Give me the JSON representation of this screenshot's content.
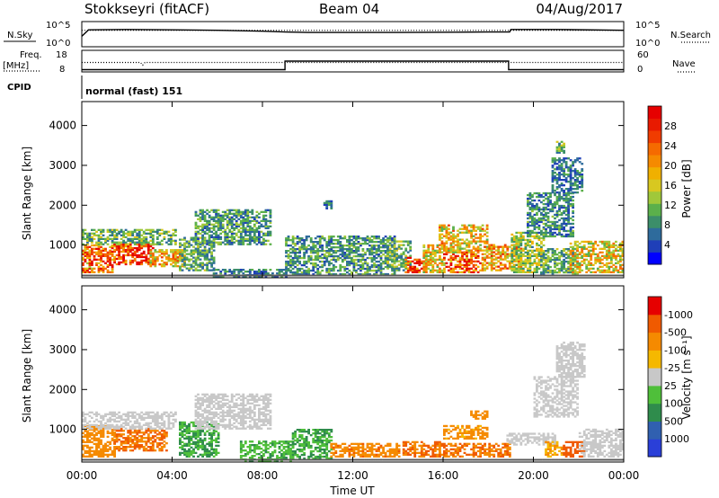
{
  "header": {
    "station": "Stokkseyri (fitACF)",
    "beam": "Beam 04",
    "date": "04/Aug/2017"
  },
  "nsky_panel": {
    "left_label": "N.Sky",
    "left_ticks": [
      "10^5",
      "10^0"
    ],
    "right_label": "N.Search",
    "right_ticks": [
      "10^5",
      "10^0"
    ]
  },
  "freq_panel": {
    "left_label_1": "Freq.",
    "left_label_2": "[MHz]",
    "left_ticks": [
      "18",
      "8"
    ],
    "right_label": "Nave",
    "right_ticks": [
      "60",
      "0"
    ],
    "cpid_label": "CPID",
    "cpid_value": "normal (fast) 151"
  },
  "chart_data": [
    {
      "type": "line",
      "panel": "N.Sky / N.Search",
      "log_scale": true,
      "x_range_hours": [
        0,
        24
      ],
      "series": [
        {
          "name": "N.Sky",
          "style": "solid",
          "x": [
            0.0,
            0.3,
            2.0,
            4.0,
            6.0,
            8.0,
            9.0,
            10.0,
            14.0,
            18.0,
            18.95,
            19.0,
            21.0,
            24.0
          ],
          "log_values": [
            2.2,
            3.7,
            3.8,
            3.7,
            3.6,
            3.4,
            3.2,
            3.1,
            3.1,
            3.2,
            3.2,
            3.8,
            3.8,
            3.6
          ]
        },
        {
          "name": "N.Search",
          "style": "dotted",
          "x": [
            0.0,
            24.0
          ],
          "log_values": [
            3.6,
            3.6
          ]
        }
      ]
    },
    {
      "type": "line",
      "panel": "Freq. / Nave",
      "series": [
        {
          "name": "Freq. [MHz]",
          "style": "dotted",
          "x": [
            0.0,
            2.6,
            2.7,
            2.8,
            24.0
          ],
          "values": [
            12.3,
            12.3,
            11.0,
            12.3,
            12.3
          ]
        },
        {
          "name": "Nave",
          "style": "solid",
          "x": [
            0.0,
            9.0,
            9.0,
            18.9,
            18.9,
            24.0
          ],
          "values": [
            4,
            4,
            30,
            30,
            4,
            4
          ]
        }
      ],
      "left_ylim": [
        8,
        18
      ],
      "right_ylim": [
        0,
        60
      ]
    },
    {
      "type": "heatmap",
      "panel": "Power",
      "ylabel": "Slant Range [km]",
      "xlim_hours": [
        0,
        24
      ],
      "ylim": [
        180,
        4600
      ],
      "y_ticks": [
        1000,
        2000,
        3000,
        4000
      ],
      "colorbar": {
        "label": "Power [dB]",
        "ticks": [
          "4",
          "8",
          "12",
          "16",
          "20",
          "24",
          "28"
        ],
        "colors": [
          "#0000ff",
          "#1f3fb8",
          "#2e6b9c",
          "#3c8e6a",
          "#5bb04b",
          "#a0c83a",
          "#d8c820",
          "#f0b000",
          "#f58a00",
          "#f56a00",
          "#f03c00",
          "#e81a00",
          "#e60000"
        ]
      },
      "regions": [
        {
          "t": [
            0.0,
            1.4
          ],
          "r": [
            300,
            1000
          ],
          "v": 22
        },
        {
          "t": [
            1.3,
            3.2
          ],
          "r": [
            500,
            1000
          ],
          "v": 26
        },
        {
          "t": [
            3.0,
            4.5
          ],
          "r": [
            450,
            900
          ],
          "v": 18
        },
        {
          "t": [
            0.0,
            4.2
          ],
          "r": [
            1000,
            1400
          ],
          "v": 10
        },
        {
          "t": [
            4.3,
            5.8
          ],
          "r": [
            350,
            1200
          ],
          "v": 9
        },
        {
          "t": [
            5.0,
            8.3
          ],
          "r": [
            1000,
            1900
          ],
          "v": 8
        },
        {
          "t": [
            5.8,
            9.0
          ],
          "r": [
            180,
            400
          ],
          "v": 6
        },
        {
          "t": [
            9.0,
            13.8
          ],
          "r": [
            250,
            1200
          ],
          "v": 8
        },
        {
          "t": [
            10.7,
            11.0
          ],
          "r": [
            1900,
            2100
          ],
          "v": 6
        },
        {
          "t": [
            13.5,
            14.5
          ],
          "r": [
            350,
            1100
          ],
          "v": 10
        },
        {
          "t": [
            14.3,
            15.2
          ],
          "r": [
            300,
            700
          ],
          "v": 27
        },
        {
          "t": [
            15.1,
            16.0
          ],
          "r": [
            300,
            1000
          ],
          "v": 16
        },
        {
          "t": [
            16.0,
            17.8
          ],
          "r": [
            300,
            800
          ],
          "v": 24
        },
        {
          "t": [
            15.8,
            18.0
          ],
          "r": [
            800,
            1500
          ],
          "v": 17
        },
        {
          "t": [
            17.8,
            19.5
          ],
          "r": [
            350,
            1000
          ],
          "v": 19
        },
        {
          "t": [
            19.0,
            20.5
          ],
          "r": [
            300,
            1300
          ],
          "v": 12
        },
        {
          "t": [
            20.3,
            22.0
          ],
          "r": [
            250,
            900
          ],
          "v": 9
        },
        {
          "t": [
            21.6,
            24.0
          ],
          "r": [
            300,
            1100
          ],
          "v": 16
        },
        {
          "t": [
            19.7,
            21.8
          ],
          "r": [
            1200,
            2300
          ],
          "v": 7
        },
        {
          "t": [
            20.8,
            22.2
          ],
          "r": [
            2300,
            3200
          ],
          "v": 6
        },
        {
          "t": [
            21.0,
            21.4
          ],
          "r": [
            3300,
            3600
          ],
          "v": 10
        }
      ]
    },
    {
      "type": "heatmap",
      "panel": "Velocity",
      "ylabel": "Slant Range [km]",
      "xlabel": "Time UT",
      "xlim_hours": [
        0,
        24
      ],
      "x_ticks": [
        "00:00",
        "04:00",
        "08:00",
        "12:00",
        "16:00",
        "20:00",
        "00:00"
      ],
      "ylim": [
        180,
        4600
      ],
      "y_ticks": [
        1000,
        2000,
        3000,
        4000
      ],
      "colorbar": {
        "label": "Velocity [m s⁻¹]",
        "ticks": [
          "1000",
          "500",
          "100",
          "25",
          "-25",
          "-100",
          "-500",
          "-1000"
        ],
        "colors": [
          "#2a3fd8",
          "#3060b0",
          "#2f8c4c",
          "#4fbf3a",
          "#c8c8c8",
          "#f5b800",
          "#f58a00",
          "#f05a00",
          "#e60000"
        ]
      },
      "regions": [
        {
          "t": [
            0.0,
            1.5
          ],
          "r": [
            300,
            1100
          ],
          "v": -200
        },
        {
          "t": [
            1.4,
            3.8
          ],
          "r": [
            450,
            1000
          ],
          "v": -300
        },
        {
          "t": [
            0.0,
            4.2
          ],
          "r": [
            1000,
            1450
          ],
          "v": 0
        },
        {
          "t": [
            4.3,
            6.0
          ],
          "r": [
            300,
            1200
          ],
          "v": 60
        },
        {
          "t": [
            5.0,
            8.3
          ],
          "r": [
            1000,
            1900
          ],
          "v": 0
        },
        {
          "t": [
            7.0,
            9.3
          ],
          "r": [
            180,
            700
          ],
          "v": 50
        },
        {
          "t": [
            9.3,
            11.0
          ],
          "r": [
            250,
            1000
          ],
          "v": 60
        },
        {
          "t": [
            11.0,
            14.0
          ],
          "r": [
            300,
            650
          ],
          "v": -250
        },
        {
          "t": [
            14.2,
            15.8
          ],
          "r": [
            300,
            700
          ],
          "v": -300
        },
        {
          "t": [
            15.8,
            19.0
          ],
          "r": [
            300,
            650
          ],
          "v": -300
        },
        {
          "t": [
            16.0,
            18.0
          ],
          "r": [
            750,
            1100
          ],
          "v": -120
        },
        {
          "t": [
            17.2,
            18.0
          ],
          "r": [
            1250,
            1450
          ],
          "v": -150
        },
        {
          "t": [
            18.8,
            21.0
          ],
          "r": [
            600,
            900
          ],
          "v": 0
        },
        {
          "t": [
            20.5,
            21.3
          ],
          "r": [
            300,
            700
          ],
          "v": -100
        },
        {
          "t": [
            21.3,
            22.3
          ],
          "r": [
            300,
            700
          ],
          "v": -500
        },
        {
          "t": [
            22.0,
            24.0
          ],
          "r": [
            300,
            1000
          ],
          "v": 0
        },
        {
          "t": [
            20.0,
            22.0
          ],
          "r": [
            1300,
            2300
          ],
          "v": 0
        },
        {
          "t": [
            21.0,
            22.3
          ],
          "r": [
            2300,
            3200
          ],
          "v": 0
        }
      ]
    }
  ]
}
